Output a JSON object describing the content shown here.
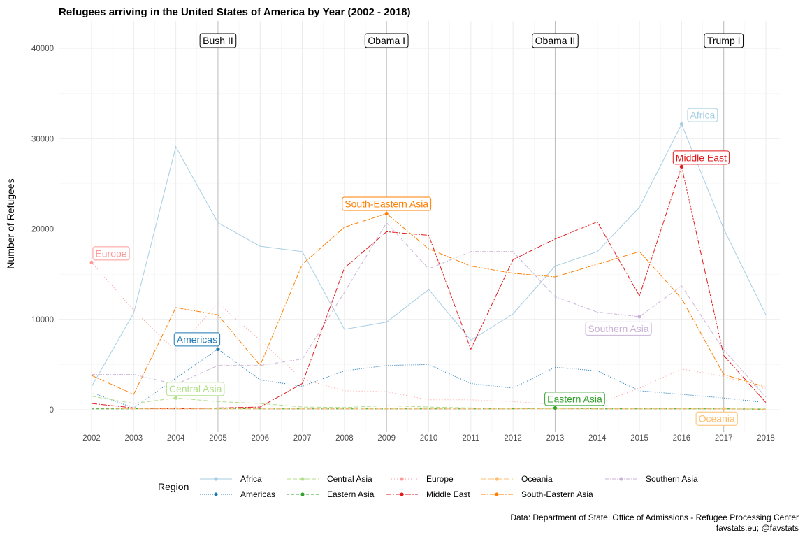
{
  "chart_data": {
    "type": "line",
    "title": "Refugees arriving in the United States of America by Year (2002 - 2018)",
    "xlabel": "",
    "ylabel": "Number of Refugees",
    "x": [
      2002,
      2003,
      2004,
      2005,
      2006,
      2007,
      2008,
      2009,
      2010,
      2011,
      2012,
      2013,
      2014,
      2015,
      2016,
      2017,
      2018
    ],
    "x_tick_labels": [
      "2002",
      "2003",
      "2004",
      "2005",
      "2006",
      "2007",
      "2008",
      "2009",
      "2010",
      "2011",
      "2012",
      "2013",
      "2014",
      "2015",
      "2016",
      "2017",
      "2018"
    ],
    "ylim": [
      -1200,
      43000
    ],
    "y_ticks": [
      0,
      10000,
      20000,
      30000,
      40000
    ],
    "y_tick_labels": [
      "0",
      "10000",
      "20000",
      "30000",
      "40000"
    ],
    "legend_title": "Region",
    "legend_position": "bottom",
    "series": [
      {
        "name": "Africa",
        "color": "#a6cee3",
        "dash": "",
        "values": [
          2550,
          10700,
          29100,
          20700,
          18100,
          17500,
          8900,
          9700,
          13300,
          7700,
          10600,
          15900,
          17500,
          22400,
          31600,
          20000,
          10500
        ],
        "label": "Africa",
        "label_year": 2016
      },
      {
        "name": "Americas",
        "color": "#1f78b4",
        "dash": "1,2",
        "values": [
          1900,
          200,
          3500,
          6700,
          3300,
          2600,
          4300,
          4900,
          5000,
          2900,
          2400,
          4700,
          4300,
          2100,
          1700,
          1300,
          800
        ],
        "label": "Americas",
        "label_year": 2005
      },
      {
        "name": "Central Asia",
        "color": "#b2df8a",
        "dash": "6,3",
        "values": [
          1500,
          700,
          1300,
          900,
          700,
          300,
          250,
          450,
          300,
          200,
          150,
          150,
          150,
          150,
          150,
          100,
          100
        ],
        "label": "Central Asia",
        "label_year": 2004
      },
      {
        "name": "Eastern Asia",
        "color": "#33a02c",
        "dash": "4,3",
        "values": [
          100,
          100,
          200,
          150,
          100,
          100,
          100,
          100,
          100,
          100,
          100,
          200,
          100,
          100,
          100,
          100,
          50
        ],
        "label": "Eastern Asia",
        "label_year": 2013
      },
      {
        "name": "Europe",
        "color": "#fb9a99",
        "dash": "1,3",
        "values": [
          16300,
          11000,
          6500,
          11800,
          7700,
          3400,
          2100,
          2000,
          1100,
          1100,
          900,
          600,
          600,
          2400,
          4500,
          3700,
          2300
        ],
        "label": "Europe",
        "label_year": 2002
      },
      {
        "name": "Middle East",
        "color": "#e31a1c",
        "dash": "8,2,2,2",
        "values": [
          700,
          200,
          100,
          200,
          300,
          2900,
          15700,
          19700,
          19300,
          6700,
          16600,
          18900,
          20800,
          12600,
          26900,
          6000,
          800
        ],
        "label": "Middle East",
        "label_year": 2016
      },
      {
        "name": "Oceania",
        "color": "#fdbf6f",
        "dash": "8,3",
        "values": [
          200,
          100,
          100,
          100,
          100,
          100,
          100,
          100,
          100,
          100,
          100,
          100,
          100,
          100,
          100,
          100,
          50
        ],
        "label": "Oceania",
        "label_year": 2017
      },
      {
        "name": "South-Eastern Asia",
        "color": "#ff7f00",
        "dash": "7,2,2,2",
        "values": [
          3800,
          1700,
          11300,
          10500,
          4900,
          16100,
          20200,
          21700,
          17800,
          15900,
          15100,
          14700,
          16100,
          17500,
          12300,
          3900,
          2500
        ],
        "label": "South-Eastern Asia",
        "label_year": 2009
      },
      {
        "name": "Southern Asia",
        "color": "#cab2d6",
        "dash": "5,2,1,2",
        "values": [
          3900,
          3900,
          2800,
          4900,
          4900,
          5600,
          13000,
          20700,
          15600,
          17500,
          17500,
          12500,
          10800,
          10300,
          13700,
          6600,
          1400
        ],
        "label": "Southern Asia",
        "label_year": 2015
      }
    ],
    "annotations": [
      {
        "text": "Bush II",
        "year": 2005
      },
      {
        "text": "Obama I",
        "year": 2009
      },
      {
        "text": "Obama II",
        "year": 2013
      },
      {
        "text": "Trump I",
        "year": 2017
      }
    ],
    "caption": [
      "Data: Department of State, Office of Admissions - Refugee Processing Center",
      "favstats.eu; @favstats"
    ]
  }
}
